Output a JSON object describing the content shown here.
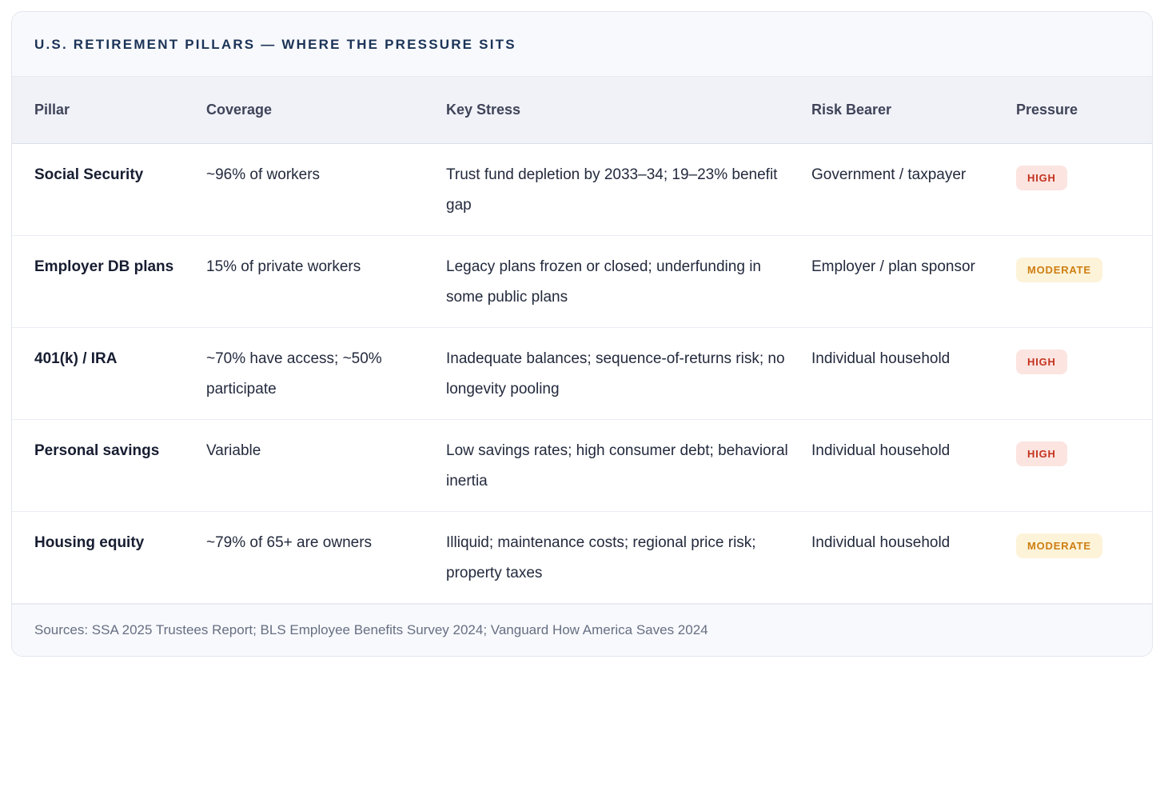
{
  "card": {
    "title": "U.S. RETIREMENT PILLARS — WHERE THE PRESSURE SITS",
    "footer": "Sources: SSA 2025 Trustees Report; BLS Employee Benefits Survey 2024; Vanguard How America Saves 2024"
  },
  "table": {
    "columns": [
      "Pillar",
      "Coverage",
      "Key Stress",
      "Risk Bearer",
      "Pressure"
    ],
    "rows": [
      {
        "pillar": "Social Security",
        "coverage": "~96% of workers",
        "key_stress": "Trust fund depletion by 2033–34; 19–23% benefit gap",
        "risk_bearer": "Government / taxpayer",
        "pressure": "HIGH",
        "pressure_level": "high"
      },
      {
        "pillar": "Employer DB plans",
        "coverage": "15% of private workers",
        "key_stress": "Legacy plans frozen or closed; underfunding in some public plans",
        "risk_bearer": "Employer / plan sponsor",
        "pressure": "MODERATE",
        "pressure_level": "moderate"
      },
      {
        "pillar": "401(k) / IRA",
        "coverage": "~70% have access; ~50% participate",
        "key_stress": "Inadequate balances; sequence-of-returns risk; no longevity pooling",
        "risk_bearer": "Individual household",
        "pressure": "HIGH",
        "pressure_level": "high"
      },
      {
        "pillar": "Personal savings",
        "coverage": "Variable",
        "key_stress": "Low savings rates; high consumer debt; behavioral inertia",
        "risk_bearer": "Individual household",
        "pressure": "HIGH",
        "pressure_level": "high"
      },
      {
        "pillar": "Housing equity",
        "coverage": "~79% of 65+ are owners",
        "key_stress": "Illiquid; maintenance costs; regional price risk; property taxes",
        "risk_bearer": "Individual household",
        "pressure": "MODERATE",
        "pressure_level": "moderate"
      }
    ]
  },
  "colors": {
    "title_text": "#1b3357",
    "high_badge_bg": "#fce4e0",
    "high_badge_text": "#c3331f",
    "moderate_badge_bg": "#fdf3d9",
    "moderate_badge_text": "#ce7e11",
    "header_band_bg": "#f1f2f8",
    "title_band_bg": "#f8f9fc"
  },
  "chart_data": {
    "type": "table",
    "title": "U.S. RETIREMENT PILLARS — WHERE THE PRESSURE SITS",
    "columns": [
      "Pillar",
      "Coverage",
      "Key Stress",
      "Risk Bearer",
      "Pressure"
    ],
    "rows": [
      [
        "Social Security",
        "~96% of workers",
        "Trust fund depletion by 2033–34; 19–23% benefit gap",
        "Government / taxpayer",
        "HIGH"
      ],
      [
        "Employer DB plans",
        "15% of private workers",
        "Legacy plans frozen or closed; underfunding in some public plans",
        "Employer / plan sponsor",
        "MODERATE"
      ],
      [
        "401(k) / IRA",
        "~70% have access; ~50% participate",
        "Inadequate balances; sequence-of-returns risk; no longevity pooling",
        "Individual household",
        "HIGH"
      ],
      [
        "Personal savings",
        "Variable",
        "Low savings rates; high consumer debt; behavioral inertia",
        "Individual household",
        "HIGH"
      ],
      [
        "Housing equity",
        "~79% of 65+ are owners",
        "Illiquid; maintenance costs; regional price risk; property taxes",
        "Individual household",
        "MODERATE"
      ]
    ],
    "annotations": "Sources: SSA 2025 Trustees Report; BLS Employee Benefits Survey 2024; Vanguard How America Saves 2024"
  }
}
